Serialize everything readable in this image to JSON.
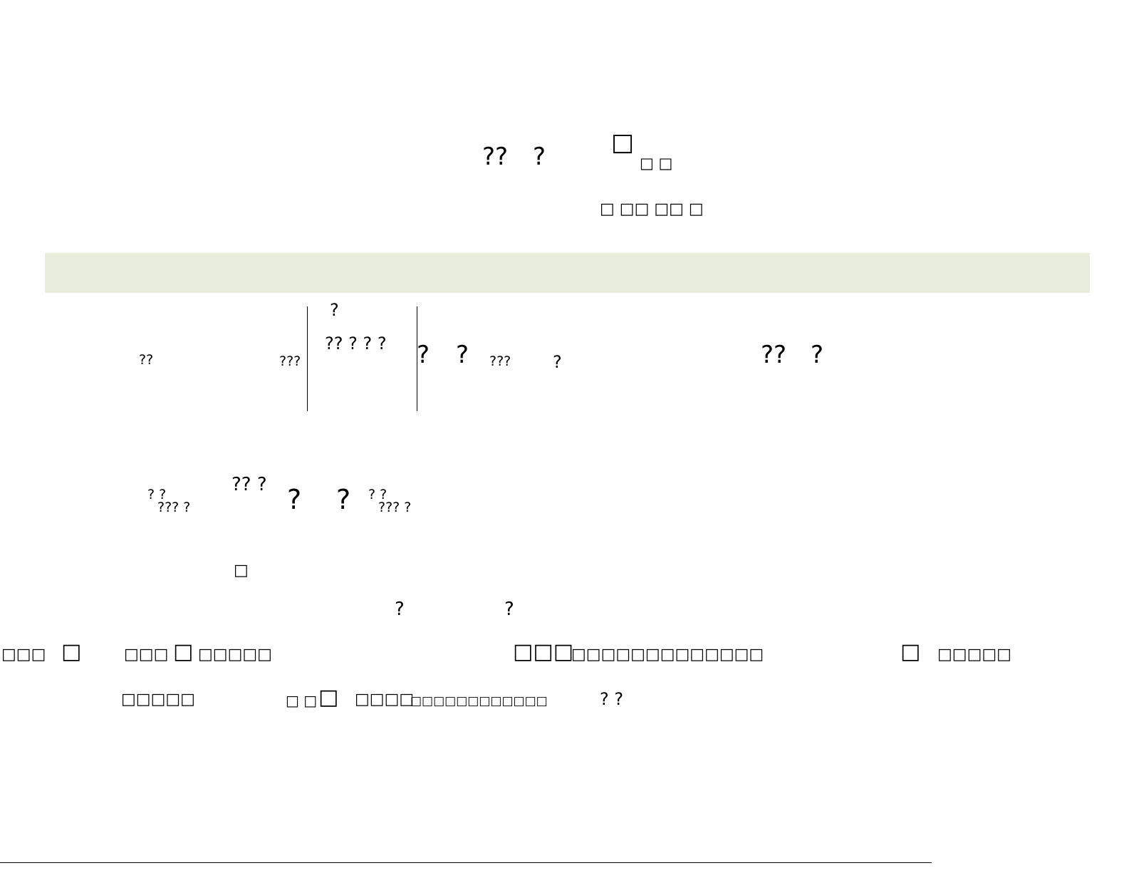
{
  "colors": {
    "band": "#e9eddc",
    "text": "#000000",
    "background": "#ffffff"
  },
  "title": {
    "part_a": "??",
    "part_b": "?",
    "part_c": "□",
    "part_d": "□ □"
  },
  "subtitle": "□ □□ □□ □",
  "formula": {
    "top_mark": "?",
    "numerator": "?? ? ? ?",
    "left_label": "??",
    "left_sub": "???",
    "term_1": "?",
    "term_2": "?",
    "sub_1": "???",
    "mark_1": "?",
    "right_1": "??",
    "right_2": "?"
  },
  "formula2": {
    "left_frac_top": "?      ?",
    "left_frac_bottom": "???   ?",
    "numerator": "?? ?",
    "term_1": "?",
    "term_2": "?",
    "right_frac_top": "?      ?",
    "right_frac_bottom": "???   ?"
  },
  "note_mark": "□",
  "row_marks": {
    "a": "?",
    "b": "?"
  },
  "footnote_line1": {
    "seg1": "□□□",
    "box1": "□",
    "seg2": "□□□",
    "box2": "□",
    "seg3": "□□□□□",
    "seg4": "□□□",
    "seg5": "□□□□□□□□□□□□□",
    "box3": "□",
    "seg6": "□□□□□"
  },
  "footnote_line2": {
    "seg1": "□□□□□",
    "seg2": "□ □",
    "box1": "□",
    "seg3": "□□□□",
    "seg4": "□□□□□□□□□□□□",
    "seg5": "? ?"
  }
}
